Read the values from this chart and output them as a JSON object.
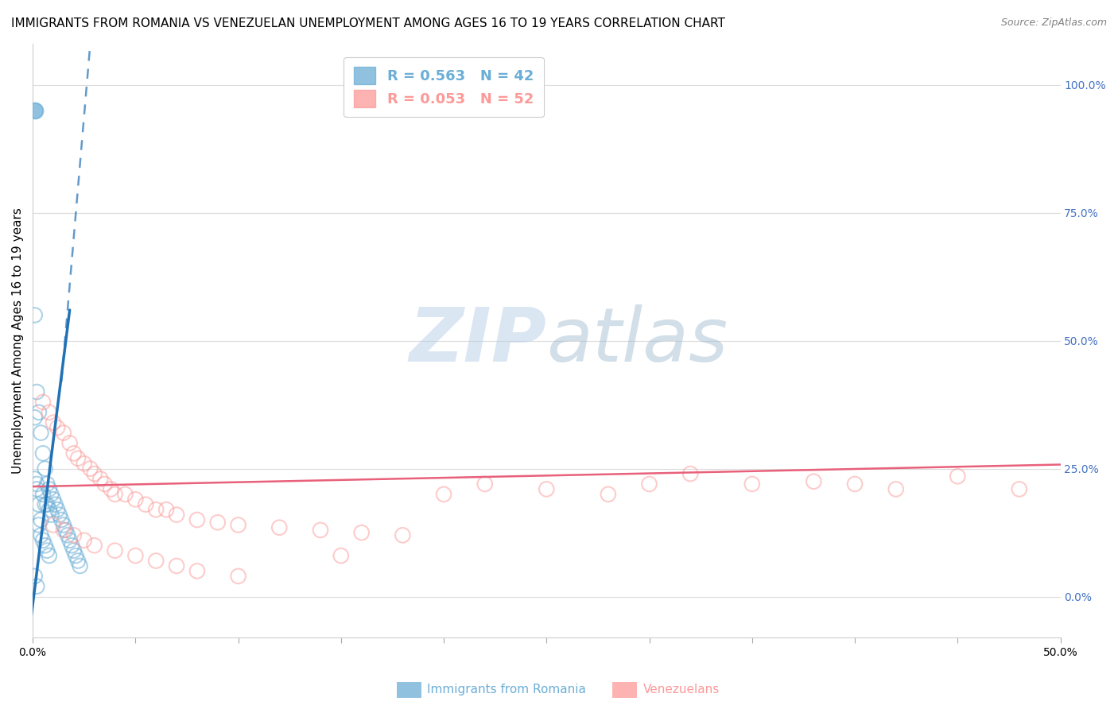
{
  "title": "IMMIGRANTS FROM ROMANIA VS VENEZUELAN UNEMPLOYMENT AMONG AGES 16 TO 19 YEARS CORRELATION CHART",
  "source": "Source: ZipAtlas.com",
  "ylabel": "Unemployment Among Ages 16 to 19 years",
  "right_yticks": [
    "100.0%",
    "75.0%",
    "50.0%",
    "25.0%",
    "0.0%"
  ],
  "right_ytick_vals": [
    1.0,
    0.75,
    0.5,
    0.25,
    0.0
  ],
  "xlim": [
    0.0,
    0.5
  ],
  "ylim": [
    -0.08,
    1.08
  ],
  "legend_labels": [
    "R = 0.563   N = 42",
    "R = 0.053   N = 52"
  ],
  "legend_colors": [
    "#6baed6",
    "#fb9a99"
  ],
  "romania_scatter_x": [
    0.001,
    0.001,
    0.002,
    0.002,
    0.003,
    0.003,
    0.004,
    0.004,
    0.005,
    0.005,
    0.006,
    0.006,
    0.007,
    0.007,
    0.008,
    0.008,
    0.009,
    0.009,
    0.01,
    0.011,
    0.012,
    0.013,
    0.014,
    0.015,
    0.016,
    0.017,
    0.018,
    0.019,
    0.02,
    0.021,
    0.022,
    0.023,
    0.001,
    0.002,
    0.003,
    0.004,
    0.005,
    0.006,
    0.007,
    0.008,
    0.001,
    0.002
  ],
  "romania_scatter_y": [
    0.55,
    0.35,
    0.4,
    0.22,
    0.36,
    0.18,
    0.32,
    0.15,
    0.28,
    0.2,
    0.25,
    0.18,
    0.22,
    0.18,
    0.21,
    0.17,
    0.2,
    0.16,
    0.19,
    0.18,
    0.17,
    0.16,
    0.15,
    0.14,
    0.13,
    0.12,
    0.11,
    0.1,
    0.09,
    0.08,
    0.07,
    0.06,
    0.23,
    0.21,
    0.14,
    0.12,
    0.11,
    0.1,
    0.09,
    0.08,
    0.04,
    0.02
  ],
  "romania_outlier_x": [
    0.001
  ],
  "romania_outlier_y": [
    0.95
  ],
  "venezuela_scatter_x": [
    0.005,
    0.008,
    0.01,
    0.012,
    0.015,
    0.018,
    0.02,
    0.022,
    0.025,
    0.028,
    0.03,
    0.033,
    0.035,
    0.038,
    0.04,
    0.045,
    0.05,
    0.055,
    0.06,
    0.065,
    0.07,
    0.08,
    0.09,
    0.1,
    0.12,
    0.14,
    0.16,
    0.18,
    0.2,
    0.22,
    0.25,
    0.28,
    0.3,
    0.32,
    0.35,
    0.38,
    0.4,
    0.42,
    0.45,
    0.48,
    0.01,
    0.015,
    0.02,
    0.025,
    0.03,
    0.04,
    0.05,
    0.06,
    0.07,
    0.08,
    0.1,
    0.15
  ],
  "venezuela_scatter_y": [
    0.38,
    0.36,
    0.34,
    0.33,
    0.32,
    0.3,
    0.28,
    0.27,
    0.26,
    0.25,
    0.24,
    0.23,
    0.22,
    0.21,
    0.2,
    0.2,
    0.19,
    0.18,
    0.17,
    0.17,
    0.16,
    0.15,
    0.145,
    0.14,
    0.135,
    0.13,
    0.125,
    0.12,
    0.2,
    0.22,
    0.21,
    0.2,
    0.22,
    0.24,
    0.22,
    0.225,
    0.22,
    0.21,
    0.235,
    0.21,
    0.14,
    0.13,
    0.12,
    0.11,
    0.1,
    0.09,
    0.08,
    0.07,
    0.06,
    0.05,
    0.04,
    0.08
  ],
  "romania_solid_line_x": [
    -0.002,
    0.018
  ],
  "romania_solid_line_y": [
    -0.08,
    0.56
  ],
  "romania_dashed_line_x": [
    0.014,
    0.028
  ],
  "romania_dashed_line_y": [
    0.42,
    1.08
  ],
  "venezuela_line_x": [
    0.0,
    0.5
  ],
  "venezuela_line_y": [
    0.215,
    0.258
  ],
  "scatter_color_romania": "#6baed6",
  "scatter_color_venezuela": "#fb9a99",
  "line_color_romania": "#2171b5",
  "line_color_venezuela": "#e8607a",
  "watermark_zip": "ZIP",
  "watermark_atlas": "atlas",
  "background_color": "#ffffff",
  "grid_color": "#d8d8d8",
  "title_fontsize": 11,
  "axis_label_fontsize": 11,
  "tick_fontsize": 10,
  "source_fontsize": 9
}
